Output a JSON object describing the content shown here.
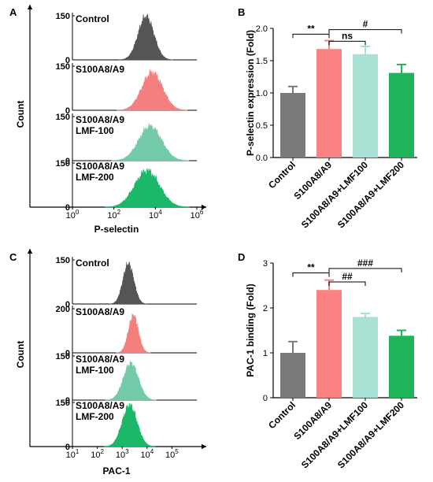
{
  "panels": [
    {
      "letter": "A"
    },
    {
      "letter": "B"
    },
    {
      "letter": "C"
    },
    {
      "letter": "D"
    }
  ],
  "chart_data": [
    {
      "id": "A",
      "type": "area",
      "xlabel": "P-selectin",
      "ylabel": "Count",
      "x_scale": "log",
      "xlim": [
        1,
        1000000
      ],
      "x_ticks": [
        {
          "v": 1,
          "base": "10",
          "exp": "0"
        },
        {
          "v": 100,
          "base": "10",
          "exp": "2"
        },
        {
          "v": 10000,
          "base": "10",
          "exp": "4"
        },
        {
          "v": 1000000,
          "base": "10",
          "exp": "6"
        }
      ],
      "series": [
        {
          "lines": [
            "Control"
          ],
          "ymax": "150",
          "ymin": "0",
          "color": "#555555",
          "mu": 3.55,
          "sigma": 0.38,
          "peak": 1.0
        },
        {
          "lines": [
            "S100A8/A9"
          ],
          "ymax": "150",
          "ymin": "0",
          "color": "#f47f7f",
          "mu": 3.85,
          "sigma": 0.5,
          "peak": 0.88
        },
        {
          "lines": [
            "S100A8/A9",
            "LMF-100"
          ],
          "ymax": "150",
          "ymin": "0",
          "color": "#72cba6",
          "mu": 3.75,
          "sigma": 0.55,
          "peak": 0.8
        },
        {
          "lines": [
            "S100A8/A9",
            "LMF-200"
          ],
          "ymax": "150",
          "ymin": "0",
          "color": "#1cb86a",
          "mu": 3.6,
          "sigma": 0.6,
          "peak": 0.85
        }
      ]
    },
    {
      "id": "B",
      "type": "bar",
      "ylabel": "P-selectin expression (Fold)",
      "ylim": [
        0,
        2.0
      ],
      "yticks": [
        "0.0",
        "0.5",
        "1.0",
        "1.5",
        "2.0"
      ],
      "categories": [
        "Control",
        "S100A8/A9",
        "S100A8/A9+LMF100",
        "S100A8/A9+LMF200"
      ],
      "values": [
        1.0,
        1.68,
        1.6,
        1.31
      ],
      "errors": [
        0.1,
        0.13,
        0.12,
        0.13
      ],
      "colors": [
        "#7a7a7a",
        "#fa8283",
        "#a8e0d3",
        "#1db45a"
      ],
      "annotations": [
        {
          "a": 0,
          "b": 1,
          "y": 1.91,
          "text": "**"
        },
        {
          "a": 1,
          "b": 2,
          "y": 1.8,
          "text": "ns"
        },
        {
          "a": 1,
          "b": 3,
          "y": 1.98,
          "text": "#"
        }
      ]
    },
    {
      "id": "C",
      "type": "area",
      "xlabel": "PAC-1",
      "ylabel": "Count",
      "x_scale": "log",
      "xlim": [
        10,
        1000000
      ],
      "x_ticks": [
        {
          "v": 10,
          "base": "10",
          "exp": "1"
        },
        {
          "v": 100,
          "base": "10",
          "exp": "2"
        },
        {
          "v": 1000,
          "base": "10",
          "exp": "3"
        },
        {
          "v": 10000,
          "base": "10",
          "exp": "4"
        },
        {
          "v": 100000,
          "base": "10",
          "exp": "5"
        }
      ],
      "series": [
        {
          "lines": [
            "Control"
          ],
          "ymax": "150",
          "ymin": "0",
          "color": "#555555",
          "mu": 3.25,
          "sigma": 0.22,
          "peak": 0.92
        },
        {
          "lines": [
            "S100A8/A9"
          ],
          "ymax": "200",
          "ymin": "0",
          "color": "#f47f7f",
          "mu": 3.45,
          "sigma": 0.2,
          "peak": 0.85
        },
        {
          "lines": [
            "S100A8/A9",
            "LMF-100"
          ],
          "ymax": "150",
          "ymin": "0",
          "color": "#72cba6",
          "mu": 3.35,
          "sigma": 0.3,
          "peak": 0.85
        },
        {
          "lines": [
            "S100A8/A9",
            "LMF-200"
          ],
          "ymax": "150",
          "ymin": "0",
          "color": "#1cb86a",
          "mu": 3.3,
          "sigma": 0.3,
          "peak": 0.95
        }
      ]
    },
    {
      "id": "D",
      "type": "bar",
      "ylabel": "PAC-1 binding (Fold)",
      "ylim": [
        0,
        3
      ],
      "yticks": [
        "0",
        "1",
        "2",
        "3"
      ],
      "categories": [
        "Control",
        "S100A8/A9",
        "S100A8/A9+LMF100",
        "S100A8/A9+LMF200"
      ],
      "values": [
        1.0,
        2.4,
        1.8,
        1.38
      ],
      "errors": [
        0.25,
        0.22,
        0.08,
        0.12
      ],
      "colors": [
        "#7a7a7a",
        "#fa8283",
        "#a8e0d3",
        "#1db45a"
      ],
      "annotations": [
        {
          "a": 0,
          "b": 1,
          "y": 2.78,
          "text": "**"
        },
        {
          "a": 1,
          "b": 2,
          "y": 2.58,
          "text": "##"
        },
        {
          "a": 1,
          "b": 3,
          "y": 2.88,
          "text": "###"
        }
      ]
    }
  ]
}
